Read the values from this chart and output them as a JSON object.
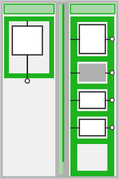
{
  "bg_color": "#c8c8c8",
  "panel_bg": "#f0f0f0",
  "green_dark": "#1db31d",
  "green_light": "#a8d8a8",
  "gray_frame": "#b0b0b0",
  "box_border": "#444444",
  "box_fill": "#ffffff",
  "box_fill_gray": "#b0b0b0",
  "wire_color": "#222222",
  "fig_width": 1.74,
  "fig_height": 2.61,
  "dpi": 100
}
